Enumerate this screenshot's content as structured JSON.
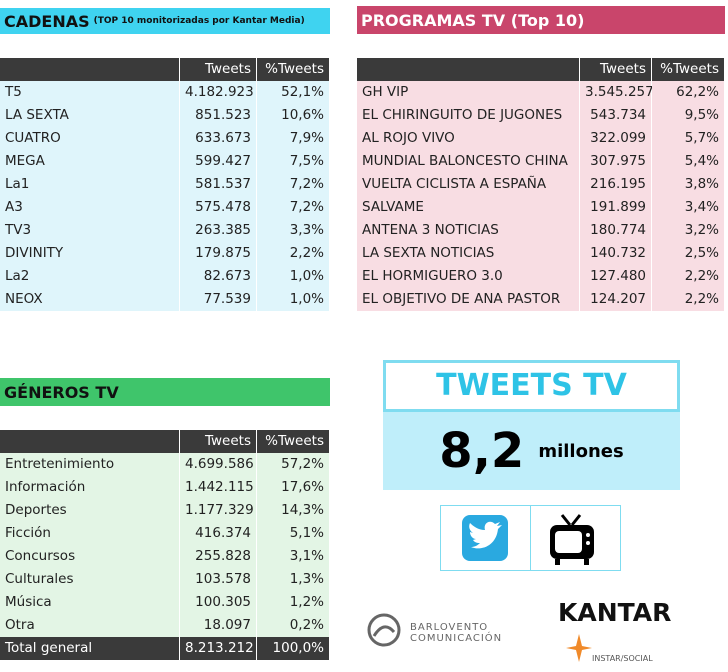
{
  "cadenas": {
    "title": "CADENAS",
    "subtitle": "(TOP 10 monitorizadas por Kantar Media)",
    "columns": [
      "Tweets",
      "%Tweets"
    ],
    "rows": [
      [
        "T5",
        "4.182.923",
        "52,1%"
      ],
      [
        "LA SEXTA",
        "851.523",
        "10,6%"
      ],
      [
        "CUATRO",
        "633.673",
        "7,9%"
      ],
      [
        "MEGA",
        "599.427",
        "7,5%"
      ],
      [
        "La1",
        "581.537",
        "7,2%"
      ],
      [
        "A3",
        "575.478",
        "7,2%"
      ],
      [
        "TV3",
        "263.385",
        "3,3%"
      ],
      [
        "DIVINITY",
        "179.875",
        "2,2%"
      ],
      [
        "La2",
        "82.673",
        "1,0%"
      ],
      [
        "NEOX",
        "77.539",
        "1,0%"
      ]
    ]
  },
  "programas": {
    "title": "PROGRAMAS TV (Top 10)",
    "columns": [
      "Tweets",
      "%Tweets"
    ],
    "rows": [
      [
        "GH VIP",
        "3.545.257",
        "62,2%"
      ],
      [
        "EL CHIRINGUITO DE JUGONES",
        "543.734",
        "9,5%"
      ],
      [
        "AL ROJO VIVO",
        "322.099",
        "5,7%"
      ],
      [
        "MUNDIAL BALONCESTO CHINA",
        "307.975",
        "5,4%"
      ],
      [
        "VUELTA CICLISTA A ESPAÑA",
        "216.195",
        "3,8%"
      ],
      [
        "SALVAME",
        "191.899",
        "3,4%"
      ],
      [
        "ANTENA 3 NOTICIAS",
        "180.774",
        "3,2%"
      ],
      [
        "LA SEXTA NOTICIAS",
        "140.732",
        "2,5%"
      ],
      [
        "EL HORMIGUERO 3.0",
        "127.480",
        "2,2%"
      ],
      [
        "EL OBJETIVO DE ANA PASTOR",
        "124.207",
        "2,2%"
      ]
    ]
  },
  "generos": {
    "title": "GÉNEROS TV",
    "columns": [
      "Tweets",
      "%Tweets"
    ],
    "rows": [
      [
        "Entretenimiento",
        "4.699.586",
        "57,2%"
      ],
      [
        "Información",
        "1.442.115",
        "17,6%"
      ],
      [
        "Deportes",
        "1.177.329",
        "14,3%"
      ],
      [
        "Ficción",
        "416.374",
        "5,1%"
      ],
      [
        "Concursos",
        "255.828",
        "3,1%"
      ],
      [
        "Culturales",
        "103.578",
        "1,3%"
      ],
      [
        "Música",
        "100.305",
        "1,2%"
      ],
      [
        "Otra",
        "18.097",
        "0,2%"
      ]
    ],
    "total": [
      "Total general",
      "8.213.212",
      "100,0%"
    ]
  },
  "summary": {
    "title": "TWEETS TV",
    "value": "8,2",
    "unit": "millones"
  },
  "logos": {
    "barlovento": [
      "BARLOVENTO",
      "COMUNICACIÓN"
    ],
    "kantar": "KANTAR",
    "instar": "INSTAR/SOCIAL"
  }
}
